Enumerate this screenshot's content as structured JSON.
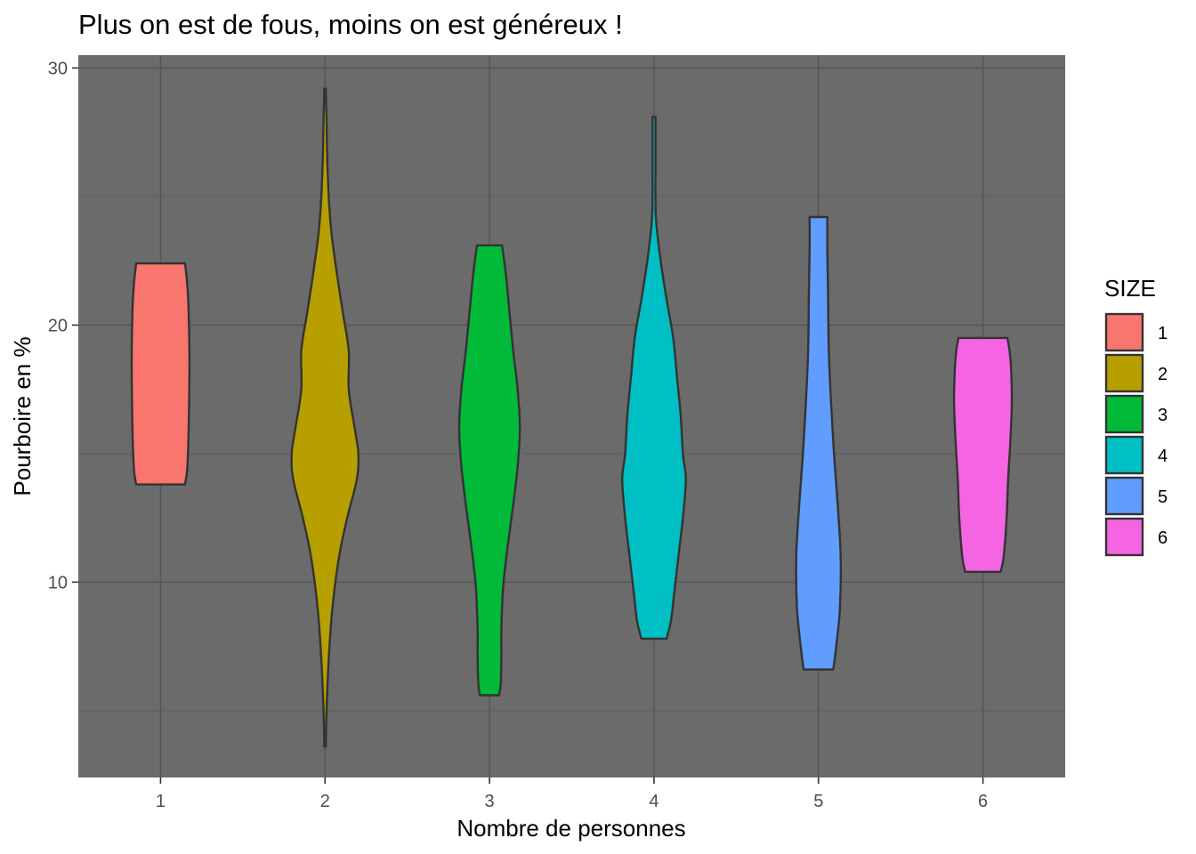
{
  "chart_data": {
    "type": "violin",
    "title": "Plus on est de fous, moins on est généreux !",
    "xlabel": "Nombre de personnes",
    "ylabel": "Pourboire en %",
    "categories": [
      "1",
      "2",
      "3",
      "4",
      "5",
      "6"
    ],
    "yticks": [
      "10",
      "20",
      "30"
    ],
    "ylim": [
      2.4,
      30.5
    ],
    "grid": true,
    "legend": {
      "title": "SIZE",
      "position": "right",
      "entries": [
        "1",
        "2",
        "3",
        "4",
        "5",
        "6"
      ]
    },
    "series": [
      {
        "category": "1",
        "color": "#F8766D",
        "min": 13.8,
        "max": 22.4,
        "profile": [
          [
            13.8,
            0.33
          ],
          [
            14.4,
            0.36
          ],
          [
            16.0,
            0.38
          ],
          [
            18.5,
            0.39
          ],
          [
            20.5,
            0.38
          ],
          [
            21.6,
            0.36
          ],
          [
            22.4,
            0.33
          ]
        ]
      },
      {
        "category": "2",
        "color": "#B79F00",
        "min": 3.6,
        "max": 29.2,
        "profile": [
          [
            3.6,
            0.01
          ],
          [
            5.0,
            0.02
          ],
          [
            7.0,
            0.05
          ],
          [
            9.0,
            0.1
          ],
          [
            11.0,
            0.19
          ],
          [
            12.5,
            0.3
          ],
          [
            14.0,
            0.43
          ],
          [
            15.0,
            0.45
          ],
          [
            16.0,
            0.4
          ],
          [
            17.5,
            0.32
          ],
          [
            19.0,
            0.32
          ],
          [
            20.5,
            0.24
          ],
          [
            22.0,
            0.16
          ],
          [
            23.5,
            0.09
          ],
          [
            25.0,
            0.05
          ],
          [
            26.5,
            0.03
          ],
          [
            28.0,
            0.02
          ],
          [
            29.2,
            0.01
          ]
        ]
      },
      {
        "category": "3",
        "color": "#00BA38",
        "min": 5.6,
        "max": 23.1,
        "profile": [
          [
            5.6,
            0.13
          ],
          [
            6.0,
            0.15
          ],
          [
            7.0,
            0.16
          ],
          [
            8.0,
            0.16
          ],
          [
            9.0,
            0.17
          ],
          [
            10.0,
            0.19
          ],
          [
            11.5,
            0.25
          ],
          [
            13.0,
            0.32
          ],
          [
            14.5,
            0.38
          ],
          [
            16.0,
            0.41
          ],
          [
            17.5,
            0.38
          ],
          [
            19.0,
            0.32
          ],
          [
            20.5,
            0.27
          ],
          [
            22.0,
            0.22
          ],
          [
            23.1,
            0.17
          ]
        ]
      },
      {
        "category": "4",
        "color": "#00BFC4",
        "min": 7.8,
        "max": 28.1,
        "profile": [
          [
            7.8,
            0.17
          ],
          [
            8.5,
            0.23
          ],
          [
            9.5,
            0.27
          ],
          [
            11.0,
            0.33
          ],
          [
            12.5,
            0.39
          ],
          [
            14.0,
            0.43
          ],
          [
            15.0,
            0.39
          ],
          [
            16.5,
            0.36
          ],
          [
            18.0,
            0.31
          ],
          [
            19.5,
            0.26
          ],
          [
            21.0,
            0.17
          ],
          [
            22.5,
            0.09
          ],
          [
            24.0,
            0.03
          ],
          [
            25.0,
            0.02
          ],
          [
            26.0,
            0.02
          ],
          [
            27.0,
            0.02
          ],
          [
            28.1,
            0.02
          ]
        ]
      },
      {
        "category": "5",
        "color": "#619CFF",
        "min": 6.6,
        "max": 24.2,
        "profile": [
          [
            6.6,
            0.2
          ],
          [
            7.5,
            0.24
          ],
          [
            9.0,
            0.29
          ],
          [
            11.0,
            0.3
          ],
          [
            13.0,
            0.26
          ],
          [
            15.0,
            0.21
          ],
          [
            17.0,
            0.17
          ],
          [
            19.0,
            0.14
          ],
          [
            21.0,
            0.13
          ],
          [
            23.0,
            0.12
          ],
          [
            24.2,
            0.12
          ]
        ]
      },
      {
        "category": "6",
        "color": "#F564E3",
        "min": 10.4,
        "max": 19.5,
        "profile": [
          [
            10.4,
            0.24
          ],
          [
            11.0,
            0.28
          ],
          [
            12.5,
            0.32
          ],
          [
            14.0,
            0.34
          ],
          [
            15.5,
            0.37
          ],
          [
            17.0,
            0.39
          ],
          [
            18.3,
            0.38
          ],
          [
            19.0,
            0.36
          ],
          [
            19.5,
            0.33
          ]
        ]
      }
    ]
  }
}
